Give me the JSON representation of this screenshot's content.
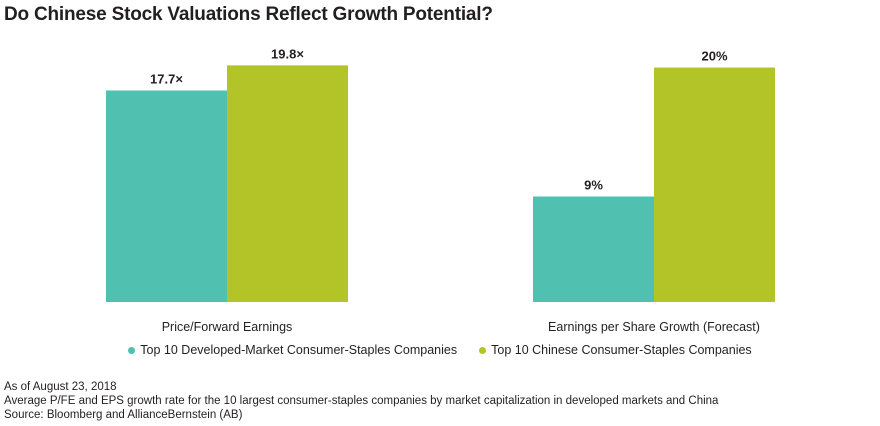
{
  "colors": {
    "developed": "#50c0b0",
    "chinese": "#b2c427"
  },
  "chart_data": {
    "type": "bar",
    "title": "Do Chinese Stock Valuations Reflect Growth Potential?",
    "groups": [
      {
        "category": "Price/Forward Earnings",
        "values": [
          17.7,
          19.8
        ],
        "labels": [
          "17.7×",
          "19.8×"
        ],
        "ylim": [
          0,
          20.5
        ]
      },
      {
        "category": "Earnings per Share Growth (Forecast)",
        "values": [
          9,
          20
        ],
        "labels": [
          "9%",
          "20%"
        ],
        "ylim": [
          0,
          20.9
        ]
      }
    ],
    "series": [
      {
        "name": "Top 10 Developed-Market Consumer-Staples Companies"
      },
      {
        "name": "Top 10 Chinese Consumer-Staples Companies"
      }
    ],
    "legend_position": "bottom"
  },
  "footnotes": {
    "date": "As of August 23, 2018",
    "note": "Average P/FE and EPS growth rate for the 10 largest consumer-staples companies by market capitalization in developed markets and China",
    "source": "Source: Bloomberg and AllianceBernstein (AB)"
  }
}
